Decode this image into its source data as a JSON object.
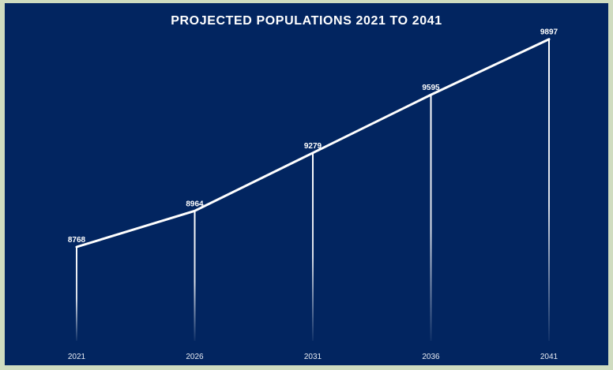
{
  "chart_data": {
    "type": "line",
    "title": "PROJECTED POPULATIONS 2021 TO 2041",
    "xlabel": "",
    "ylabel": "",
    "categories": [
      "2021",
      "2026",
      "2031",
      "2036",
      "2041"
    ],
    "series": [
      {
        "values": [
          8768,
          8964,
          9279,
          9595,
          9897
        ]
      }
    ],
    "grid": false,
    "legend": "none",
    "colors": {
      "background": "#022560",
      "border": "#cfdcc0",
      "line": "#ffffff",
      "text": "#ffffff"
    }
  }
}
